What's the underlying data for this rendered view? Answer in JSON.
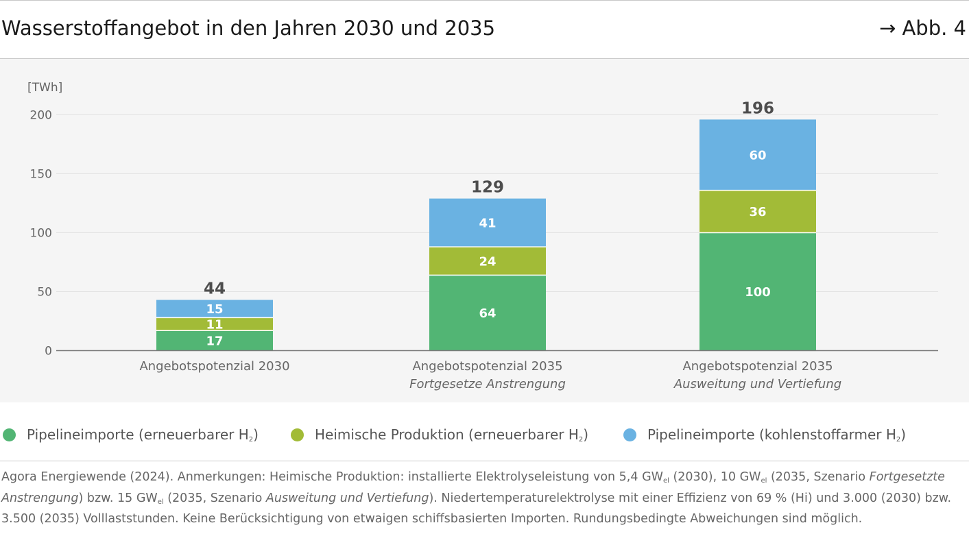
{
  "header": {
    "title": "Wasserstoffangebot in den Jahren 2030 und 2035",
    "figure_ref": "→ Abb. 4"
  },
  "colors": {
    "pipeline_renewable": "#52b574",
    "domestic": "#a2bb37",
    "pipeline_lowcarbon": "#6ab2e2",
    "axis": "#7a7a7a",
    "grid": "#e2e2e2",
    "plot_bg": "#f5f5f5"
  },
  "chart_data": {
    "type": "bar",
    "stacked": true,
    "unit_label": "[TWh]",
    "ylim": [
      0,
      200
    ],
    "yticks": [
      0,
      50,
      100,
      150,
      200
    ],
    "grid": true,
    "categories": [
      {
        "line1": "Angebotspotenzial 2030",
        "line2": ""
      },
      {
        "line1": "Angebotspotenzial 2035",
        "line2": "Fortgesetze Anstrengung"
      },
      {
        "line1": "Angebotspotenzial 2035",
        "line2": "Ausweitung und Vertiefung"
      }
    ],
    "series": [
      {
        "name": "Pipelineimporte (erneuerbarer H",
        "sub": "2",
        "close": ")",
        "color": "#52b574",
        "values": [
          17,
          64,
          100
        ]
      },
      {
        "name": "Heimische Produktion (erneuerbarer H",
        "sub": "2",
        "close": ")",
        "color": "#a2bb37",
        "values": [
          11,
          24,
          36
        ]
      },
      {
        "name": "Pipelineimporte (kohlenstoffarmer H",
        "sub": "2",
        "close": ")",
        "color": "#6ab2e2",
        "values": [
          15,
          41,
          60
        ]
      }
    ],
    "totals": [
      44,
      129,
      196
    ],
    "legend_position": "bottom"
  },
  "note": {
    "p1": "Agora Energiewende (2024). Anmerkungen: Heimische Produktion: installierte Elektrolyseleistung von 5,4 GW",
    "el": "el",
    "p2": " (2030), 10 GW",
    "p3": " (2035, Szenario ",
    "i1": "Fortgesetzte Anstrengung",
    "p4": ") bzw. 15 GW",
    "p5": " (2035, Szenario ",
    "i2": "Ausweitung und Vertiefung",
    "p6": "). Niedertemperaturelektrolyse mit einer Effizienz von 69 % (Hi) und 3.000 (2030) bzw. 3.500 (2035) Volllaststunden. Keine Berücksichtigung von etwaigen schiffsbasierten Importen. Rundungsbedingte Abweichungen sind möglich."
  }
}
